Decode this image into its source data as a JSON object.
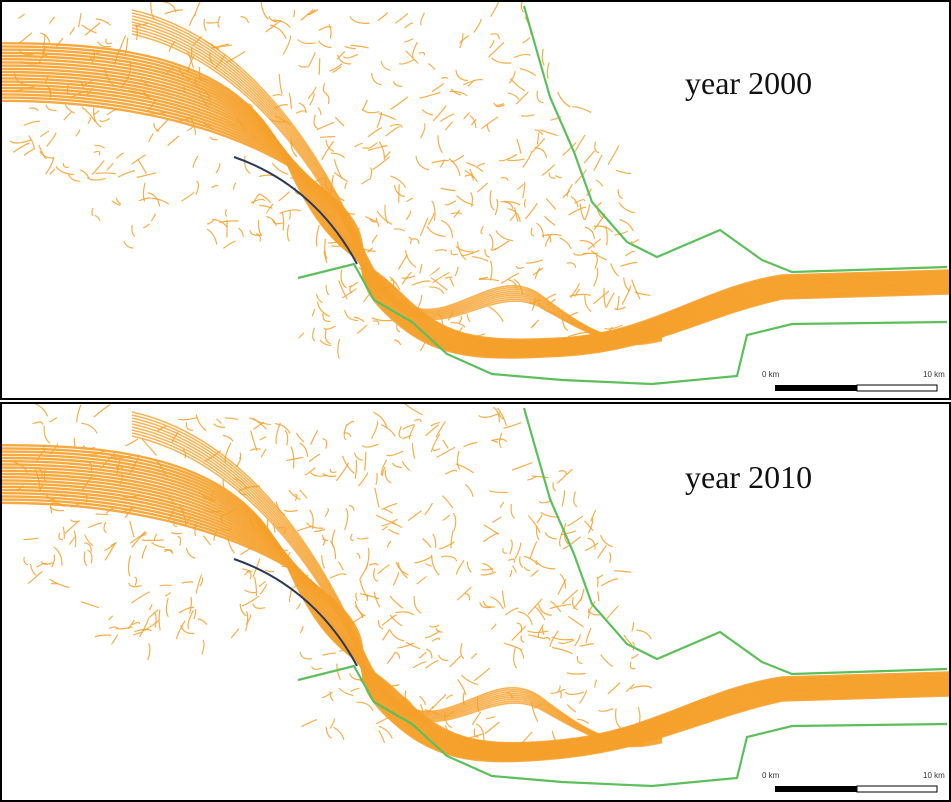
{
  "panels": [
    {
      "label": "year 2000",
      "scale": {
        "start": "0 km",
        "end": "10 km"
      }
    },
    {
      "label": "year 2010",
      "scale": {
        "start": "0 km",
        "end": "10 km"
      }
    }
  ]
}
